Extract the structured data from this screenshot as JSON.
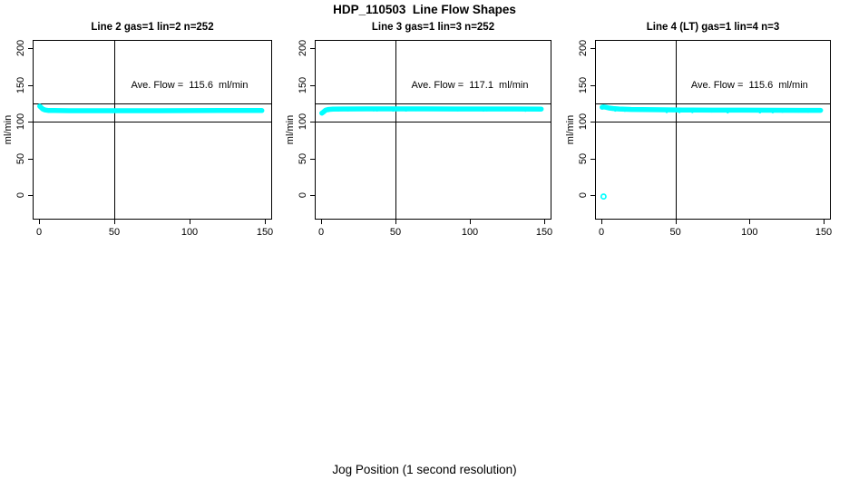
{
  "figure_title": "HDP_110503  Line Flow Shapes",
  "x_axis_label": "Jog Position (1 second resolution)",
  "colors": {
    "points": "#00FFFF",
    "axis": "#000000",
    "background": "#FFFFFF"
  },
  "chart_data": [
    {
      "type": "scatter",
      "title": "Line 2 gas=1 lin=2 n=252",
      "ylabel": "ml/min",
      "annotation": "Ave. Flow =  115.6  ml/min",
      "annotation_pos": [
        100,
        150
      ],
      "ave_flow_ml_min": 115.6,
      "n_points": 252,
      "xlim": [
        0,
        150
      ],
      "ylim": [
        0,
        200
      ],
      "x_ticks": [
        0,
        50,
        100,
        150
      ],
      "y_ticks": [
        0,
        50,
        100,
        150,
        200
      ],
      "ref_lines_h": [
        100,
        125
      ],
      "ref_lines_v": [
        50
      ],
      "noise_amp": 0,
      "band": [
        [
          0.5,
          121
        ],
        [
          1.5,
          119
        ],
        [
          2.5,
          117
        ],
        [
          4,
          115.8
        ],
        [
          6,
          115.2
        ],
        [
          10,
          115
        ],
        [
          20,
          114.8
        ],
        [
          40,
          114.8
        ],
        [
          60,
          114.8
        ],
        [
          80,
          114.8
        ],
        [
          100,
          114.9
        ],
        [
          120,
          115
        ],
        [
          140,
          115
        ],
        [
          148,
          115.1
        ]
      ],
      "outliers": []
    },
    {
      "type": "scatter",
      "title": "Line 3 gas=1 lin=3 n=252",
      "ylabel": "ml/min",
      "annotation": "Ave. Flow =  117.1  ml/min",
      "annotation_pos": [
        100,
        150
      ],
      "ave_flow_ml_min": 117.1,
      "n_points": 252,
      "xlim": [
        0,
        150
      ],
      "ylim": [
        0,
        200
      ],
      "x_ticks": [
        0,
        50,
        100,
        150
      ],
      "y_ticks": [
        0,
        50,
        100,
        150,
        200
      ],
      "ref_lines_h": [
        100,
        125
      ],
      "ref_lines_v": [
        50
      ],
      "noise_amp": 1.1,
      "band": [
        [
          0.5,
          111.5
        ],
        [
          1.5,
          113
        ],
        [
          3,
          115.5
        ],
        [
          5,
          116.5
        ],
        [
          8,
          117
        ],
        [
          15,
          117.2
        ],
        [
          30,
          117.3
        ],
        [
          50,
          117.3
        ],
        [
          70,
          117.3
        ],
        [
          90,
          117.2
        ],
        [
          110,
          117.2
        ],
        [
          130,
          117.1
        ],
        [
          148,
          117
        ]
      ],
      "outliers": []
    },
    {
      "type": "scatter",
      "title": "Line 4 (LT) gas=1 lin=4 n=3",
      "ylabel": "ml/min",
      "annotation": "Ave. Flow =  115.6  ml/min",
      "annotation_pos": [
        100,
        150
      ],
      "ave_flow_ml_min": 115.6,
      "n_points": 3,
      "xlim": [
        0,
        150
      ],
      "ylim": [
        0,
        200
      ],
      "x_ticks": [
        0,
        50,
        100,
        150
      ],
      "y_ticks": [
        0,
        50,
        100,
        150,
        200
      ],
      "ref_lines_h": [
        100,
        125
      ],
      "ref_lines_v": [
        50
      ],
      "noise_amp": 1.5,
      "band": [
        [
          0.5,
          119.5
        ],
        [
          1.5,
          120
        ],
        [
          3,
          119.5
        ],
        [
          5,
          118.5
        ],
        [
          8,
          117.8
        ],
        [
          12,
          117.2
        ],
        [
          20,
          116.6
        ],
        [
          35,
          116.2
        ],
        [
          55,
          115.8
        ],
        [
          75,
          115.6
        ],
        [
          95,
          115.5
        ],
        [
          115,
          115.4
        ],
        [
          135,
          115.3
        ],
        [
          148,
          115.3
        ]
      ],
      "outliers": [
        [
          1.5,
          -2
        ]
      ]
    }
  ]
}
